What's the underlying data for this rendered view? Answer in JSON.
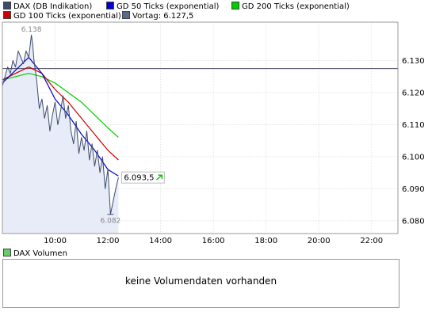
{
  "legend": {
    "items": [
      {
        "label": "DAX (DB Indikation)",
        "color": "#3c4a6b"
      },
      {
        "label": "GD 50 Ticks (exponential)",
        "color": "#0000cc"
      },
      {
        "label": "GD 200 Ticks (exponential)",
        "color": "#00cc00"
      },
      {
        "label": "GD 100 Ticks (exponential)",
        "color": "#cc0000"
      },
      {
        "label": "Vortag: 6.127,5",
        "color": "#5a6a8a"
      }
    ]
  },
  "chart_data": {
    "type": "line",
    "x_ticks": [
      "10:00",
      "12:00",
      "14:00",
      "16:00",
      "18:00",
      "20:00",
      "22:00"
    ],
    "y_ticks": [
      "6.080",
      "6.090",
      "6.100",
      "6.110",
      "6.120",
      "6.130"
    ],
    "ylim": [
      6076,
      6142
    ],
    "xlim_hours": [
      8.0,
      23.0
    ],
    "grid": true,
    "previous_close": 6127.5,
    "annotations": {
      "high": "6.138",
      "low": "6.082",
      "last": "6.093,5"
    },
    "series": [
      {
        "name": "DAX (DB Indikation)",
        "color": "#3c4a6b",
        "x": [
          8.0,
          8.1,
          8.2,
          8.3,
          8.4,
          8.5,
          8.6,
          8.7,
          8.8,
          8.9,
          9.0,
          9.1,
          9.15,
          9.2,
          9.3,
          9.4,
          9.5,
          9.6,
          9.7,
          9.8,
          9.9,
          10.0,
          10.1,
          10.2,
          10.3,
          10.4,
          10.5,
          10.6,
          10.7,
          10.8,
          10.9,
          11.0,
          11.1,
          11.2,
          11.3,
          11.4,
          11.5,
          11.6,
          11.7,
          11.8,
          11.9,
          12.0,
          12.1,
          12.2,
          12.3,
          12.4
        ],
        "values": [
          6122,
          6125,
          6128,
          6126,
          6130,
          6128,
          6133,
          6131,
          6129,
          6133,
          6131,
          6138,
          6135,
          6130,
          6124,
          6115,
          6118,
          6112,
          6116,
          6108,
          6113,
          6117,
          6110,
          6114,
          6119,
          6112,
          6116,
          6108,
          6104,
          6111,
          6101,
          6106,
          6102,
          6108,
          6099,
          6104,
          6097,
          6102,
          6095,
          6100,
          6090,
          6096,
          6082,
          6086,
          6090,
          6093.5
        ]
      },
      {
        "name": "GD 50 Ticks (exponential)",
        "color": "#0000cc",
        "x": [
          8.0,
          8.5,
          9.0,
          9.5,
          10.0,
          10.5,
          11.0,
          11.5,
          12.0,
          12.4
        ],
        "values": [
          6123,
          6127,
          6131,
          6126,
          6118,
          6113,
          6107,
          6102,
          6096,
          6094
        ]
      },
      {
        "name": "GD 100 Ticks (exponential)",
        "color": "#cc0000",
        "x": [
          8.0,
          8.5,
          9.0,
          9.5,
          10.0,
          10.5,
          11.0,
          11.5,
          12.0,
          12.4
        ],
        "values": [
          6124,
          6126,
          6128,
          6126,
          6121,
          6117,
          6112,
          6107,
          6102,
          6099
        ]
      },
      {
        "name": "GD 200 Ticks (exponential)",
        "color": "#00cc00",
        "x": [
          8.0,
          8.5,
          9.0,
          9.5,
          10.0,
          10.5,
          11.0,
          11.5,
          12.0,
          12.4
        ],
        "values": [
          6124,
          6125,
          6126,
          6125,
          6123,
          6120,
          6117,
          6113,
          6109,
          6106
        ]
      }
    ]
  },
  "volume": {
    "legend_label": "DAX Volumen",
    "legend_color": "#66cc66",
    "message": "keine Volumendaten vorhanden"
  }
}
